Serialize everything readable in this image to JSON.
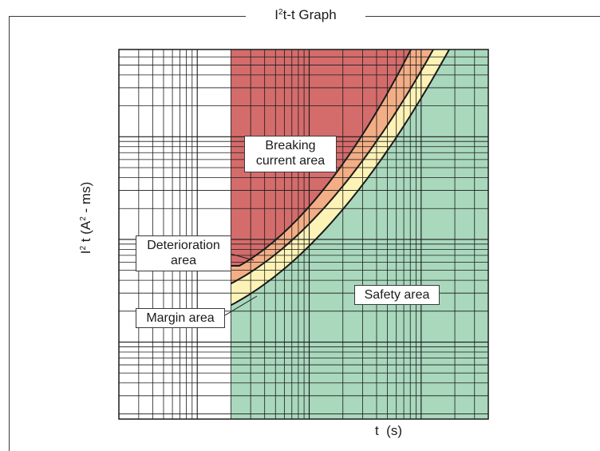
{
  "title": {
    "main": "I",
    "sup": "2",
    "rest": "t-t Graph"
  },
  "axes": {
    "ylabel": {
      "main": "I",
      "sup": "2",
      "rest": " t (A",
      "sup2": "2",
      "rest2": " - ms)"
    },
    "xlabel": "t  (s)",
    "scale": "log-log",
    "grid": true
  },
  "regions": {
    "breaking": {
      "line1": "Breaking",
      "line2": "current area",
      "color": "#d46c6c"
    },
    "deterioration": {
      "line1": "Deterioration",
      "line2": "area",
      "color": "#f3ae86"
    },
    "margin": {
      "label": "Margin area",
      "color": "#fdf3b6"
    },
    "safety": {
      "label": "Safety area",
      "color": "#a9d8bd"
    }
  },
  "colors": {
    "grid": "#1a1a1a",
    "axis": "#1a1a1a",
    "curve": "#1a1a1a"
  }
}
